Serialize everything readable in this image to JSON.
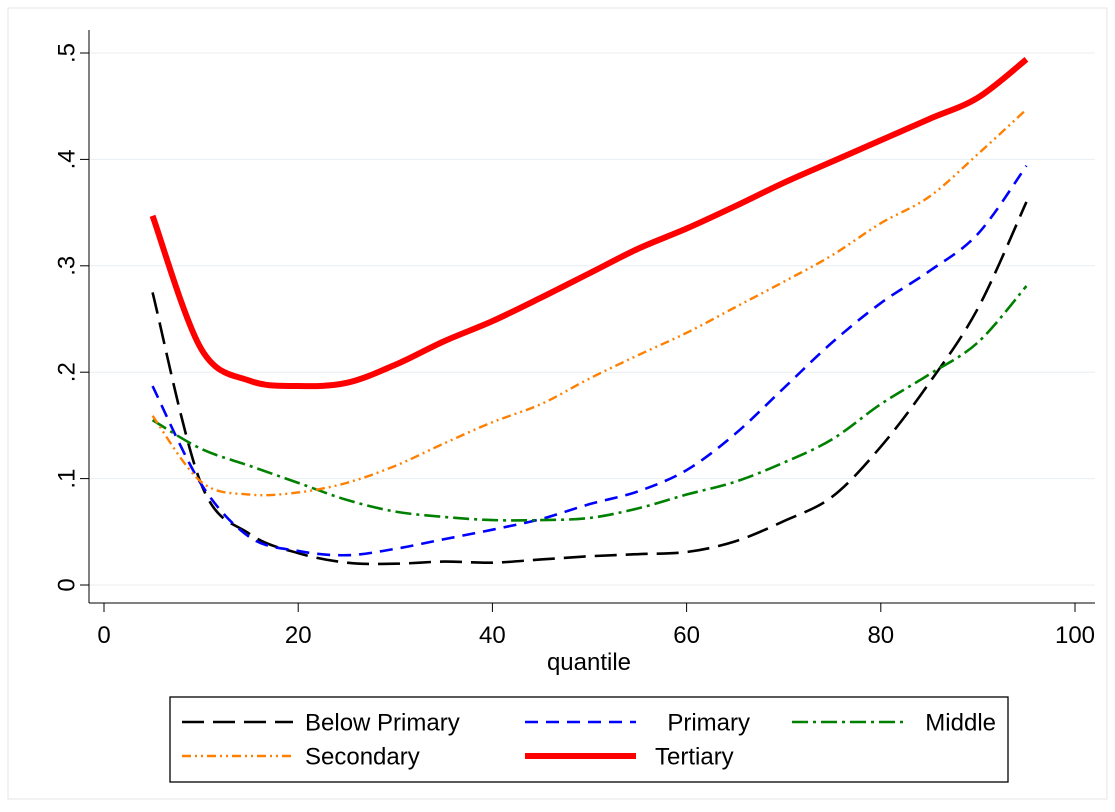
{
  "chart_data": {
    "type": "line",
    "title": "",
    "xlabel": "quantile",
    "ylabel": "",
    "xlim": [
      0,
      100
    ],
    "ylim": [
      0,
      0.5
    ],
    "xticks": [
      0,
      20,
      40,
      60,
      80,
      100
    ],
    "xtick_labels": [
      "0",
      "20",
      "40",
      "60",
      "80",
      "100"
    ],
    "yticks": [
      0,
      0.1,
      0.2,
      0.3,
      0.4,
      0.5
    ],
    "ytick_labels": [
      "0",
      ".1",
      ".2",
      ".3",
      ".4",
      ".5"
    ],
    "grid": true,
    "legend_position": "bottom",
    "x": [
      5,
      10,
      15,
      20,
      25,
      30,
      35,
      40,
      45,
      50,
      55,
      60,
      65,
      70,
      75,
      80,
      85,
      90,
      95
    ],
    "series": [
      {
        "name": "Below Primary",
        "color": "#000000",
        "style": "long-dash",
        "values": [
          0.275,
          0.095,
          0.048,
          0.03,
          0.021,
          0.02,
          0.022,
          0.021,
          0.024,
          0.027,
          0.029,
          0.031,
          0.041,
          0.06,
          0.083,
          0.13,
          0.19,
          0.26,
          0.36
        ]
      },
      {
        "name": "Primary",
        "color": "#0000ff",
        "style": "dash",
        "values": [
          0.187,
          0.095,
          0.045,
          0.032,
          0.028,
          0.034,
          0.043,
          0.052,
          0.062,
          0.076,
          0.088,
          0.108,
          0.142,
          0.185,
          0.228,
          0.265,
          0.295,
          0.33,
          0.394
        ]
      },
      {
        "name": "Middle",
        "color": "#008000",
        "style": "dash-dot",
        "values": [
          0.155,
          0.128,
          0.112,
          0.096,
          0.08,
          0.069,
          0.064,
          0.061,
          0.061,
          0.063,
          0.072,
          0.085,
          0.097,
          0.115,
          0.137,
          0.17,
          0.198,
          0.228,
          0.281
        ]
      },
      {
        "name": "Secondary",
        "color": "#ff8000",
        "style": "dash-dot-dot",
        "values": [
          0.159,
          0.097,
          0.085,
          0.087,
          0.096,
          0.112,
          0.133,
          0.153,
          0.17,
          0.194,
          0.216,
          0.237,
          0.261,
          0.285,
          0.31,
          0.34,
          0.365,
          0.405,
          0.447
        ]
      },
      {
        "name": "Tertiary",
        "color": "#ff0000",
        "style": "solid-thick",
        "values": [
          0.347,
          0.222,
          0.192,
          0.187,
          0.19,
          0.207,
          0.229,
          0.248,
          0.27,
          0.293,
          0.316,
          0.335,
          0.356,
          0.378,
          0.398,
          0.418,
          0.438,
          0.458,
          0.494
        ]
      }
    ]
  }
}
